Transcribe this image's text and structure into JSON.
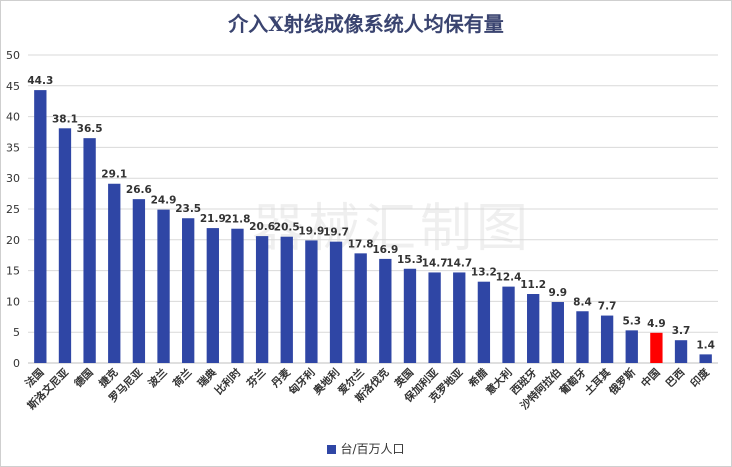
{
  "chart_data": {
    "type": "bar",
    "title": "介入X射线成像系统人均保有量",
    "categories": [
      "法国",
      "斯洛文尼亚",
      "德国",
      "捷克",
      "罗马尼亚",
      "波兰",
      "荷兰",
      "瑞典",
      "比利时",
      "芬兰",
      "丹麦",
      "匈牙利",
      "奥地利",
      "爱尔兰",
      "斯洛伐克",
      "英国",
      "保加利亚",
      "克罗地亚",
      "希腊",
      "意大利",
      "西班牙",
      "沙特阿拉伯",
      "葡萄牙",
      "土耳其",
      "俄罗斯",
      "中国",
      "巴西",
      "印度"
    ],
    "series": [
      {
        "name": "台/百万人口",
        "values": [
          44.3,
          38.1,
          36.5,
          29.1,
          26.6,
          24.9,
          23.5,
          21.9,
          21.8,
          20.6,
          20.5,
          19.9,
          19.7,
          17.8,
          16.9,
          15.3,
          14.7,
          14.7,
          13.2,
          12.4,
          11.2,
          9.9,
          8.4,
          7.7,
          5.3,
          4.9,
          3.7,
          1.4
        ]
      }
    ],
    "highlight_category": "中国",
    "ylim": [
      0,
      50
    ],
    "yticks": [
      "0",
      "5",
      "10",
      "15",
      "20",
      "25",
      "30",
      "35",
      "40",
      "45",
      "50"
    ],
    "grid": true,
    "legend_position": "bottom",
    "colors": {
      "bar": "#2f46a5",
      "highlight": "#ff0000",
      "grid": "#d9d9d9"
    }
  },
  "watermark": "器械汇制图"
}
